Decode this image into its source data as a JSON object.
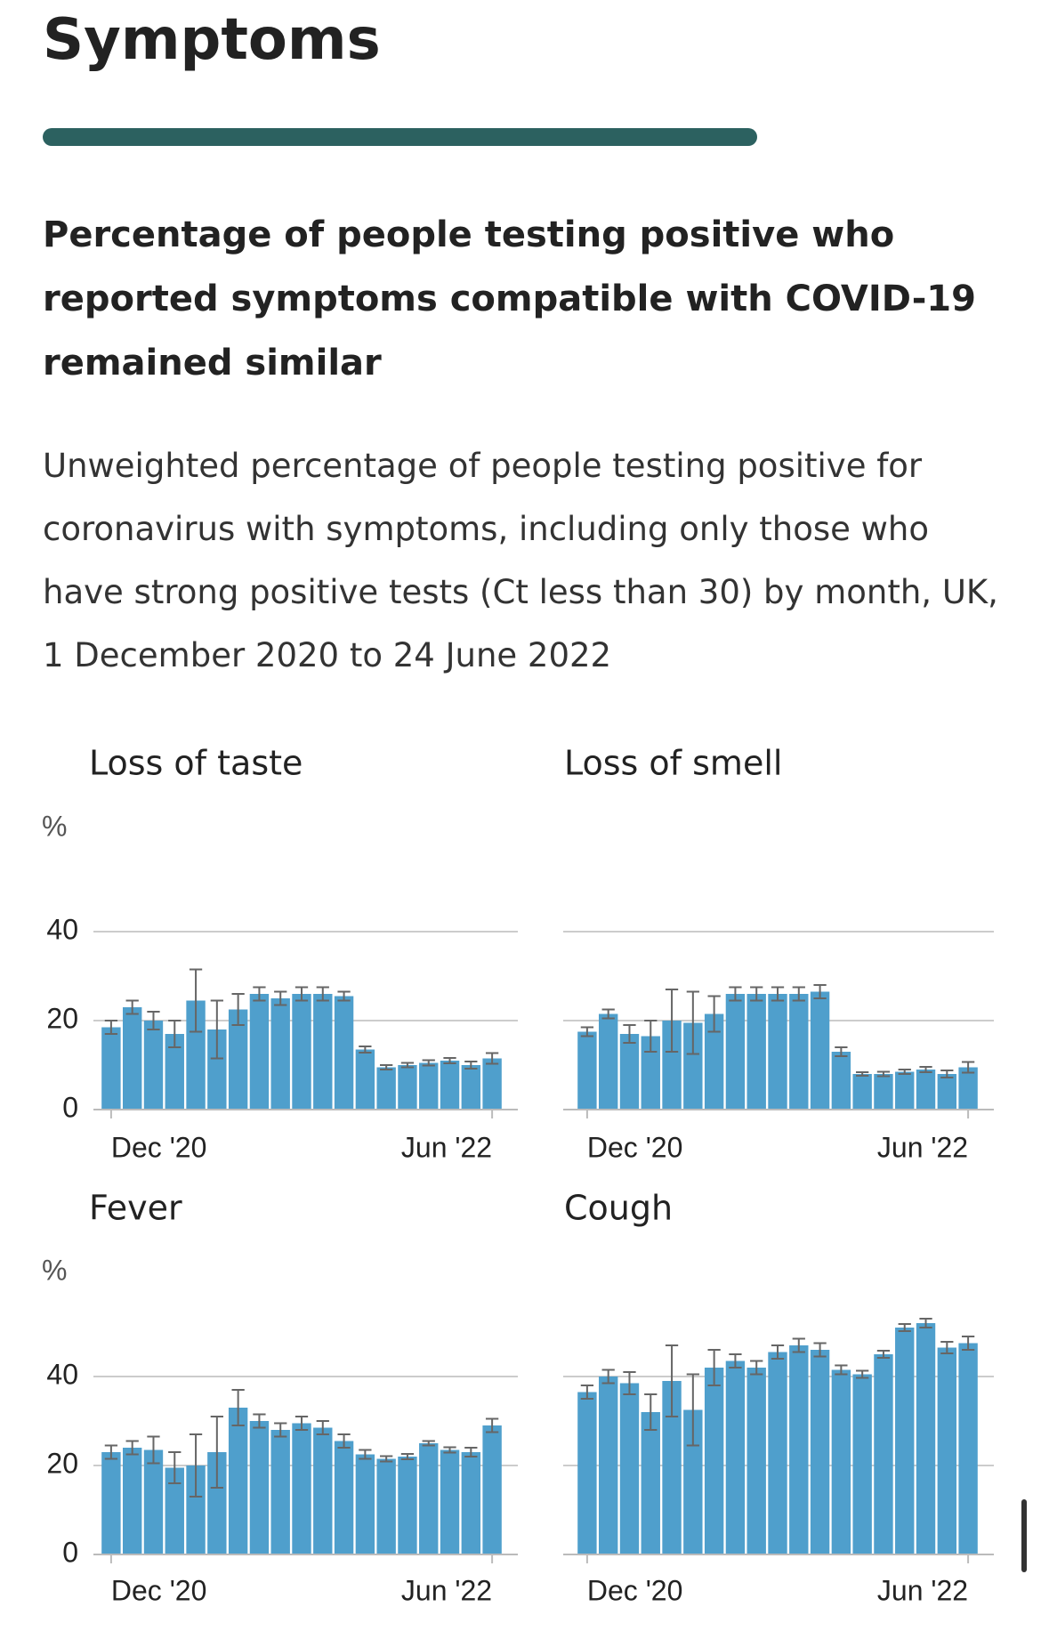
{
  "title": "Symptoms",
  "heading": "Percentage of people testing positive who reported symptoms compatible with COVID-19 remained similar",
  "subtitle": "Unweighted percentage of people testing positive for coronavirus with symptoms, including only those who have strong positive tests (Ct less than 30) by month, UK, 1 December 2020 to 24 June 2022",
  "chart_data": [
    {
      "type": "bar",
      "title": "Loss of taste",
      "ylabel": "%",
      "ytick_labels": true,
      "color": "#4f9fcc",
      "error_color": "#666666",
      "categories": [
        "Dec '20",
        null,
        null,
        null,
        null,
        null,
        null,
        null,
        null,
        null,
        null,
        null,
        null,
        null,
        null,
        null,
        null,
        null,
        "Jun '22"
      ],
      "values": [
        18.5,
        23,
        20,
        17,
        24.5,
        18,
        22.5,
        26,
        25,
        26,
        26,
        25.5,
        13.5,
        9.5,
        10,
        10.5,
        11,
        10,
        11.5
      ],
      "errors": [
        1.5,
        1.5,
        2,
        3,
        7,
        6.5,
        3.5,
        1.5,
        1.5,
        1.5,
        1.5,
        1,
        0.7,
        0.5,
        0.5,
        0.6,
        0.6,
        0.8,
        1.2
      ],
      "ylim": [
        0,
        60
      ],
      "yticks": [
        0,
        20,
        40
      ],
      "grid": true
    },
    {
      "type": "bar",
      "title": "Loss of smell",
      "ytick_labels": false,
      "color": "#4f9fcc",
      "error_color": "#666666",
      "categories": [
        "Dec '20",
        null,
        null,
        null,
        null,
        null,
        null,
        null,
        null,
        null,
        null,
        null,
        null,
        null,
        null,
        null,
        null,
        null,
        "Jun '22"
      ],
      "values": [
        17.5,
        21.5,
        17,
        16.5,
        20,
        19.5,
        21.5,
        26,
        26,
        26,
        26,
        26.5,
        13,
        8,
        8,
        8.5,
        9,
        8,
        9.5
      ],
      "errors": [
        1,
        1,
        2,
        3.5,
        7,
        7,
        4,
        1.5,
        1.5,
        1.5,
        1.5,
        1.5,
        1,
        0.4,
        0.5,
        0.5,
        0.6,
        0.8,
        1.2
      ],
      "ylim": [
        0,
        60
      ],
      "yticks": [
        0,
        20,
        40
      ],
      "grid": true
    },
    {
      "type": "bar",
      "title": "Fever",
      "ylabel": "%",
      "ytick_labels": true,
      "color": "#4f9fcc",
      "error_color": "#666666",
      "categories": [
        "Dec '20",
        null,
        null,
        null,
        null,
        null,
        null,
        null,
        null,
        null,
        null,
        null,
        null,
        null,
        null,
        null,
        null,
        null,
        "Jun '22"
      ],
      "values": [
        23,
        24,
        23.5,
        19.5,
        20,
        23,
        33,
        30,
        28,
        29.5,
        28.5,
        25.5,
        22.5,
        21.5,
        22,
        25,
        23.5,
        23,
        29
      ],
      "errors": [
        1.5,
        1.5,
        3,
        3.5,
        7,
        8,
        4,
        1.5,
        1.5,
        1.5,
        1.5,
        1.5,
        1,
        0.6,
        0.6,
        0.5,
        0.6,
        1,
        1.5
      ],
      "ylim": [
        0,
        60
      ],
      "yticks": [
        0,
        20,
        40
      ],
      "grid": true
    },
    {
      "type": "bar",
      "title": "Cough",
      "ytick_labels": false,
      "color": "#4f9fcc",
      "error_color": "#666666",
      "categories": [
        "Dec '20",
        null,
        null,
        null,
        null,
        null,
        null,
        null,
        null,
        null,
        null,
        null,
        null,
        null,
        null,
        null,
        null,
        null,
        "Jun '22"
      ],
      "values": [
        36.5,
        40,
        38.5,
        32,
        39,
        32.5,
        42,
        43.5,
        42,
        45.5,
        47,
        46,
        41.5,
        40.5,
        45,
        51,
        52,
        46.5,
        47.5
      ],
      "errors": [
        1.5,
        1.5,
        2.5,
        4,
        8,
        8,
        4,
        1.5,
        1.5,
        1.5,
        1.5,
        1.5,
        1,
        0.8,
        0.8,
        0.8,
        1,
        1.3,
        1.5
      ],
      "ylim": [
        0,
        60
      ],
      "yticks": [
        0,
        20,
        40
      ],
      "grid": true
    }
  ]
}
